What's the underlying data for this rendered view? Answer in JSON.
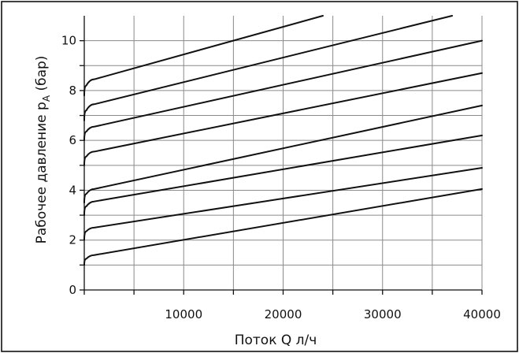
{
  "chart_data": {
    "type": "line",
    "title": "",
    "xlabel": "Поток Q л/ч",
    "ylabel_main": "Рабочее давление p",
    "ylabel_sub": "A",
    "ylabel_tail": " (бар)",
    "xlim": [
      0,
      40000
    ],
    "ylim": [
      0,
      11
    ],
    "x_ticks": [
      0,
      5000,
      10000,
      15000,
      20000,
      25000,
      30000,
      35000,
      40000
    ],
    "x_tick_labels": [
      "10000",
      "20000",
      "30000",
      "40000"
    ],
    "x_tick_label_values": [
      10000,
      20000,
      30000,
      40000
    ],
    "y_ticks": [
      0,
      1,
      2,
      3,
      4,
      5,
      6,
      7,
      8,
      9,
      10
    ],
    "y_tick_labels": [
      "0",
      "2",
      "4",
      "6",
      "8",
      "10"
    ],
    "y_tick_label_values": [
      0,
      2,
      4,
      6,
      8,
      10
    ],
    "grid": true,
    "series": [
      {
        "values": [
          [
            0,
            1.0
          ],
          [
            200,
            1.25
          ],
          [
            1000,
            1.4
          ],
          [
            40000,
            4.05
          ]
        ]
      },
      {
        "values": [
          [
            0,
            2.0
          ],
          [
            200,
            2.35
          ],
          [
            1000,
            2.5
          ],
          [
            40000,
            4.9
          ]
        ]
      },
      {
        "values": [
          [
            0,
            3.0
          ],
          [
            200,
            3.35
          ],
          [
            1000,
            3.55
          ],
          [
            40000,
            6.2
          ]
        ]
      },
      {
        "values": [
          [
            0,
            3.5
          ],
          [
            200,
            3.85
          ],
          [
            1000,
            4.05
          ],
          [
            40000,
            7.4
          ]
        ]
      },
      {
        "values": [
          [
            0,
            5.0
          ],
          [
            200,
            5.35
          ],
          [
            1000,
            5.55
          ],
          [
            40000,
            8.7
          ]
        ]
      },
      {
        "values": [
          [
            0,
            6.0
          ],
          [
            200,
            6.35
          ],
          [
            1000,
            6.55
          ],
          [
            40000,
            10.0
          ]
        ]
      },
      {
        "values": [
          [
            0,
            6.8
          ],
          [
            200,
            7.2
          ],
          [
            1000,
            7.45
          ],
          [
            37000,
            11.0
          ]
        ]
      },
      {
        "values": [
          [
            0,
            7.8
          ],
          [
            200,
            8.2
          ],
          [
            1000,
            8.45
          ],
          [
            24000,
            11.0
          ]
        ]
      }
    ]
  }
}
